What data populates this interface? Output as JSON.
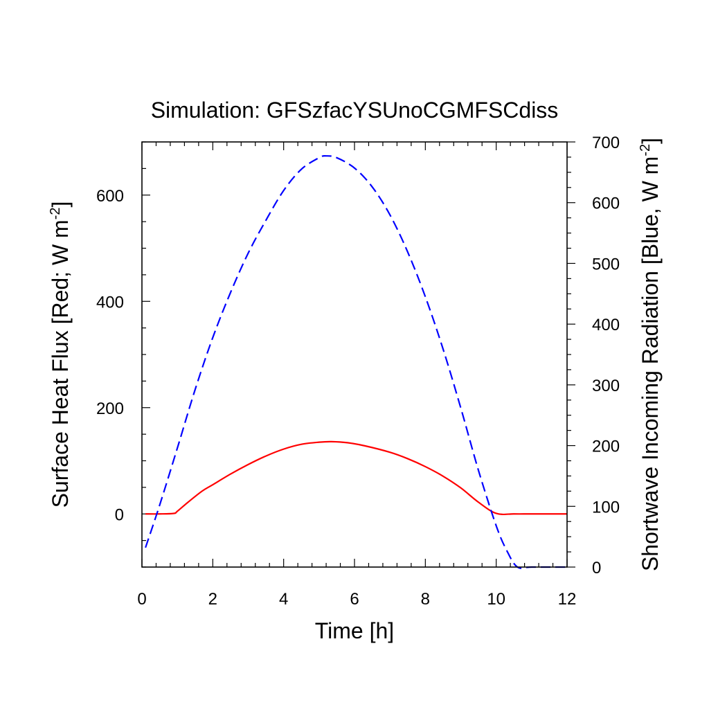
{
  "chart_data": {
    "type": "line",
    "title": "Simulation: GFSzfacYSUnoCGMFSCdiss",
    "xlabel": "Time [h]",
    "ylabel_left": {
      "text": "Surface Heat Flux [Red; W m",
      "sup": "-2",
      "close": "]"
    },
    "ylabel_right": {
      "text": "Shortwave Incoming Radiation [Blue, W m",
      "sup": "-2",
      "close": "]"
    },
    "xlim": [
      0,
      12
    ],
    "ylim_left": [
      -100,
      700
    ],
    "ylim_right": [
      0,
      700
    ],
    "xticks": [
      0,
      2,
      4,
      6,
      8,
      10,
      12
    ],
    "xtick_labels": [
      "0",
      "2",
      "4",
      "6",
      "8",
      "10",
      "12"
    ],
    "yticks_left": [
      0,
      200,
      400,
      600
    ],
    "ytick_labels_left": [
      "0",
      "200",
      "400",
      "600"
    ],
    "yticks_right": [
      0,
      100,
      200,
      300,
      400,
      500,
      600,
      700
    ],
    "ytick_labels_right": [
      "0",
      "100",
      "200",
      "300",
      "400",
      "500",
      "600",
      "700"
    ],
    "grid": false,
    "legend": "none",
    "series": [
      {
        "axis": "left",
        "color": "#ff0000",
        "dash": "solid",
        "x": [
          0.1,
          0.5,
          0.9,
          1.0,
          1.3,
          1.7,
          2.0,
          2.5,
          3.0,
          3.5,
          4.0,
          4.5,
          5.0,
          5.35,
          5.8,
          6.3,
          7.0,
          7.5,
          8.0,
          8.5,
          9.0,
          9.5,
          10.0,
          10.5,
          11.0,
          12.0
        ],
        "y": [
          0,
          0,
          1,
          5,
          22,
          43,
          55,
          75,
          93,
          109,
          122,
          131,
          135,
          136,
          134,
          128,
          116,
          104,
          89,
          71,
          49,
          22,
          1,
          0,
          0,
          0
        ]
      },
      {
        "axis": "right",
        "color": "#0000ff",
        "dash": "dashed",
        "x": [
          0.1,
          0.5,
          1.0,
          1.5,
          2.0,
          2.5,
          3.0,
          3.5,
          4.0,
          4.5,
          5.0,
          5.2,
          5.5,
          6.0,
          6.5,
          7.0,
          7.5,
          8.0,
          8.5,
          9.0,
          9.5,
          10.0,
          10.3,
          10.6,
          11.0,
          12.0
        ],
        "y": [
          32,
          102,
          196,
          292,
          378,
          452,
          517,
          571,
          620,
          655,
          674,
          677,
          674,
          657,
          626,
          580,
          519,
          445,
          359,
          262,
          159,
          68,
          27,
          0,
          0,
          0
        ]
      }
    ]
  }
}
